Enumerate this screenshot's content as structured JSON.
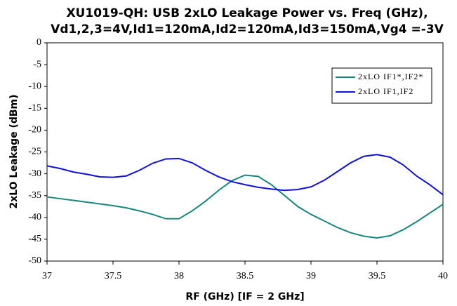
{
  "chart_data": {
    "type": "line",
    "title": "XU1019-QH: USB 2xLO Leakage Power vs. Freq (GHz),",
    "subtitle": "Vd1,2,3=4V,Id1=120mA,Id2=120mA,Id3=150mA,Vg4 =-3V",
    "x_label": "RF (GHz) [IF = 2 GHz]",
    "y_label": "2xLO Leakage (dBm)",
    "x": [
      37,
      37.1,
      37.2,
      37.3,
      37.4,
      37.5,
      37.6,
      37.7,
      37.8,
      37.9,
      38,
      38.1,
      38.2,
      38.3,
      38.4,
      38.5,
      38.6,
      38.7,
      38.8,
      38.9,
      39,
      39.1,
      39.2,
      39.3,
      39.4,
      39.5,
      39.6,
      39.7,
      39.8,
      39.9,
      40
    ],
    "series": [
      {
        "name": "2xLO IF1*,IF2*",
        "color": "#17877d",
        "values": [
          -35.3,
          -35.7,
          -36.1,
          -36.5,
          -36.9,
          -37.3,
          -37.8,
          -38.5,
          -39.3,
          -40.3,
          -40.3,
          -38.5,
          -36.3,
          -33.8,
          -31.6,
          -30.3,
          -30.6,
          -32.5,
          -35,
          -37.5,
          -39.3,
          -40.8,
          -42.3,
          -43.5,
          -44.3,
          -44.7,
          -44.2,
          -42.8,
          -41,
          -39,
          -37
        ]
      },
      {
        "name": "2xLO IF1,IF2",
        "color": "#1010e0",
        "values": [
          -28.2,
          -28.8,
          -29.6,
          -30.1,
          -30.7,
          -30.8,
          -30.5,
          -29.2,
          -27.6,
          -26.6,
          -26.5,
          -27.5,
          -29.2,
          -30.7,
          -31.8,
          -32.5,
          -33.1,
          -33.5,
          -33.8,
          -33.6,
          -33,
          -31.5,
          -29.5,
          -27.5,
          -26,
          -25.6,
          -26.2,
          -28,
          -30.5,
          -32.5,
          -34.8
        ]
      }
    ],
    "xlim": [
      37,
      40
    ],
    "xticks": [
      37,
      37.5,
      38,
      38.5,
      39,
      39.5,
      40
    ],
    "ylim": [
      -50,
      0
    ],
    "yticks": [
      0,
      -5,
      -10,
      -15,
      -20,
      -25,
      -30,
      -35,
      -40,
      -45,
      -50
    ],
    "grid": false,
    "legend": "upper right"
  }
}
